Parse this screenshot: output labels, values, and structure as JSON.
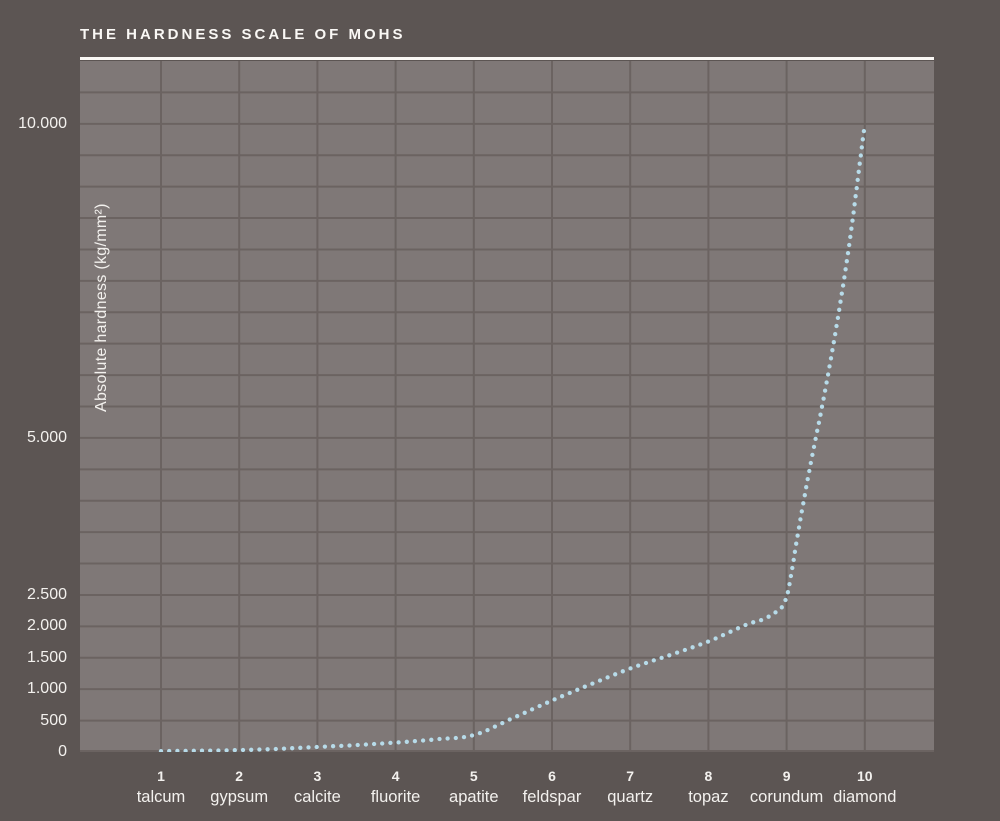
{
  "title": "THE HARDNESS SCALE OF MOHS",
  "colors": {
    "background": "#5c5553",
    "plot_background": "#7f7877",
    "gridline": "#6b6361",
    "title_rule": "#faf8f5",
    "text": "#f3f1ee",
    "curve_dot": "#b7dbe9"
  },
  "chart_data": {
    "type": "line",
    "line_style": "dotted",
    "title": "THE HARDNESS SCALE OF MOHS",
    "xlabel": "",
    "ylabel": "Absolute hardness (kg/mm²)",
    "x": [
      1,
      2,
      3,
      4,
      5,
      6,
      7,
      8,
      9,
      10
    ],
    "categories": [
      {
        "num": "1",
        "name": "talcum"
      },
      {
        "num": "2",
        "name": "gypsum"
      },
      {
        "num": "3",
        "name": "calcite"
      },
      {
        "num": "4",
        "name": "fluorite"
      },
      {
        "num": "5",
        "name": "apatite"
      },
      {
        "num": "6",
        "name": "feldspar"
      },
      {
        "num": "7",
        "name": "quartz"
      },
      {
        "num": "8",
        "name": "topaz"
      },
      {
        "num": "9",
        "name": "corundum"
      },
      {
        "num": "10",
        "name": "diamond"
      }
    ],
    "values": [
      15,
      30,
      80,
      150,
      270,
      820,
      1330,
      1760,
      2470,
      10000
    ],
    "curve_samples": [
      [
        1,
        15
      ],
      [
        1.5,
        20
      ],
      [
        2,
        30
      ],
      [
        2.5,
        50
      ],
      [
        3,
        80
      ],
      [
        3.5,
        110
      ],
      [
        4,
        150
      ],
      [
        4.5,
        200
      ],
      [
        5,
        270
      ],
      [
        5.5,
        540
      ],
      [
        6,
        820
      ],
      [
        6.5,
        1080
      ],
      [
        7,
        1330
      ],
      [
        7.5,
        1540
      ],
      [
        8,
        1760
      ],
      [
        8.5,
        2035
      ],
      [
        8.8,
        2180
      ],
      [
        9,
        2470
      ],
      [
        9.07,
        2905
      ],
      [
        9.13,
        3370
      ],
      [
        9.26,
        4275
      ],
      [
        9.54,
        6074
      ],
      [
        9.79,
        7983
      ],
      [
        10,
        10000
      ]
    ],
    "ylim": [
      0,
      11000
    ],
    "grid_step": 500,
    "grid": true,
    "legend": false,
    "yticks": [
      {
        "label": "10.000",
        "value": 10000
      },
      {
        "label": "5.000",
        "value": 5000
      },
      {
        "label": "2.500",
        "value": 2500
      },
      {
        "label": "2.000",
        "value": 2000
      },
      {
        "label": "1.500",
        "value": 1500
      },
      {
        "label": "1.000",
        "value": 1000
      },
      {
        "label": "500",
        "value": 500
      },
      {
        "label": "0",
        "value": 0
      }
    ]
  }
}
